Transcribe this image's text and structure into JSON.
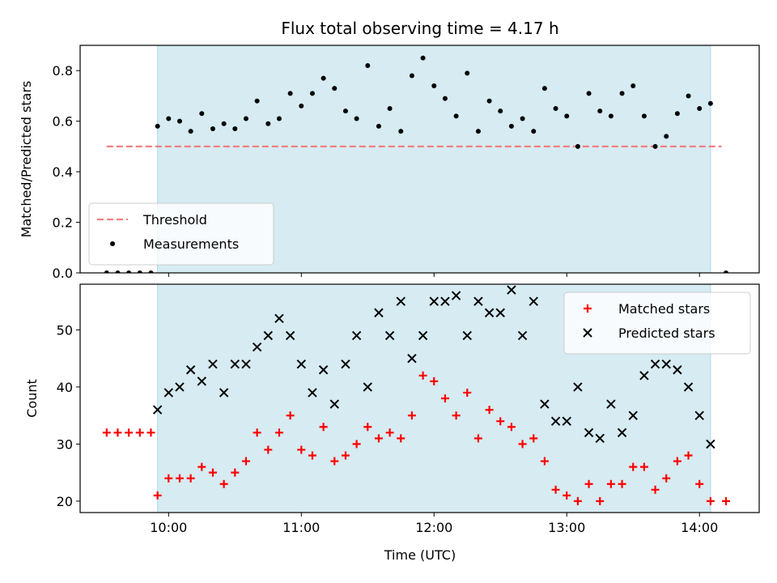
{
  "chart_data": {
    "title": "Flux total observing time = 4.17 h",
    "xlabel": "Time (UTC)",
    "x_ticks": [
      "10:00",
      "11:00",
      "12:00",
      "13:00",
      "14:00"
    ],
    "colors": {
      "shade": "#add8e6",
      "threshold": "#f08080",
      "measurements": "#000000",
      "matched": "#ff0000",
      "predicted": "#000000"
    },
    "observing_window": {
      "start": "09:55",
      "end": "14:05"
    },
    "panels": [
      {
        "type": "scatter",
        "ylabel": "Matched/Predicted stars",
        "ylim": [
          0,
          0.9
        ],
        "y_ticks": [
          "0.0",
          "0.2",
          "0.4",
          "0.6",
          "0.8"
        ],
        "legend_position": "lower-left",
        "series": [
          {
            "name": "Threshold",
            "style": "dashed-line",
            "x": [
              "09:32",
              "14:10"
            ],
            "y": [
              0.5,
              0.5
            ]
          },
          {
            "name": "Measurements",
            "style": "dot",
            "x": [
              "09:32",
              "09:37",
              "09:42",
              "09:47",
              "09:52",
              "09:55",
              "10:00",
              "10:05",
              "10:10",
              "10:15",
              "10:20",
              "10:25",
              "10:30",
              "10:35",
              "10:40",
              "10:45",
              "10:50",
              "10:55",
              "11:00",
              "11:05",
              "11:10",
              "11:15",
              "11:20",
              "11:25",
              "11:30",
              "11:35",
              "11:40",
              "11:45",
              "11:50",
              "11:55",
              "12:00",
              "12:05",
              "12:10",
              "12:15",
              "12:20",
              "12:25",
              "12:30",
              "12:35",
              "12:40",
              "12:45",
              "12:50",
              "12:55",
              "13:00",
              "13:05",
              "13:10",
              "13:15",
              "13:20",
              "13:25",
              "13:30",
              "13:35",
              "13:40",
              "13:45",
              "13:50",
              "13:55",
              "14:00",
              "14:05",
              "14:12"
            ],
            "y": [
              0,
              0,
              0,
              0,
              0,
              0.58,
              0.61,
              0.6,
              0.56,
              0.63,
              0.57,
              0.59,
              0.57,
              0.61,
              0.68,
              0.59,
              0.61,
              0.71,
              0.66,
              0.71,
              0.77,
              0.73,
              0.64,
              0.61,
              0.82,
              0.58,
              0.65,
              0.56,
              0.78,
              0.85,
              0.74,
              0.69,
              0.62,
              0.79,
              0.56,
              0.68,
              0.64,
              0.58,
              0.61,
              0.56,
              0.73,
              0.65,
              0.62,
              0.5,
              0.71,
              0.64,
              0.62,
              0.71,
              0.74,
              0.62,
              0.5,
              0.54,
              0.63,
              0.7,
              0.65,
              0.67,
              0
            ]
          }
        ]
      },
      {
        "type": "scatter",
        "ylabel": "Count",
        "ylim": [
          18,
          58
        ],
        "y_ticks": [
          "20",
          "30",
          "40",
          "50"
        ],
        "legend_position": "upper-right",
        "series": [
          {
            "name": "Matched stars",
            "style": "plus",
            "x": [
              "09:32",
              "09:37",
              "09:42",
              "09:47",
              "09:52",
              "09:55",
              "10:00",
              "10:05",
              "10:10",
              "10:15",
              "10:20",
              "10:25",
              "10:30",
              "10:35",
              "10:40",
              "10:45",
              "10:50",
              "10:55",
              "11:00",
              "11:05",
              "11:10",
              "11:15",
              "11:20",
              "11:25",
              "11:30",
              "11:35",
              "11:40",
              "11:45",
              "11:50",
              "11:55",
              "12:00",
              "12:05",
              "12:10",
              "12:15",
              "12:20",
              "12:25",
              "12:30",
              "12:35",
              "12:40",
              "12:45",
              "12:50",
              "12:55",
              "13:00",
              "13:05",
              "13:10",
              "13:15",
              "13:20",
              "13:25",
              "13:30",
              "13:35",
              "13:40",
              "13:45",
              "13:50",
              "13:55",
              "14:00",
              "14:05",
              "14:12"
            ],
            "y": [
              32,
              32,
              32,
              32,
              32,
              21,
              24,
              24,
              24,
              26,
              25,
              23,
              25,
              27,
              32,
              29,
              32,
              35,
              29,
              28,
              33,
              27,
              28,
              30,
              33,
              31,
              32,
              31,
              35,
              42,
              41,
              38,
              35,
              39,
              31,
              36,
              34,
              33,
              30,
              31,
              27,
              22,
              21,
              20,
              23,
              20,
              23,
              23,
              26,
              26,
              22,
              24,
              27,
              28,
              23,
              20,
              20
            ]
          },
          {
            "name": "Predicted stars",
            "style": "cross",
            "x": [
              "09:55",
              "10:00",
              "10:05",
              "10:10",
              "10:15",
              "10:20",
              "10:25",
              "10:30",
              "10:35",
              "10:40",
              "10:45",
              "10:50",
              "10:55",
              "11:00",
              "11:05",
              "11:10",
              "11:15",
              "11:20",
              "11:25",
              "11:30",
              "11:35",
              "11:40",
              "11:45",
              "11:50",
              "11:55",
              "12:00",
              "12:05",
              "12:10",
              "12:15",
              "12:20",
              "12:25",
              "12:30",
              "12:35",
              "12:40",
              "12:45",
              "12:50",
              "12:55",
              "13:00",
              "13:05",
              "13:10",
              "13:15",
              "13:20",
              "13:25",
              "13:30",
              "13:35",
              "13:40",
              "13:45",
              "13:50",
              "13:55",
              "14:00",
              "14:05"
            ],
            "y": [
              36,
              39,
              40,
              43,
              41,
              44,
              39,
              44,
              44,
              47,
              49,
              52,
              49,
              44,
              39,
              43,
              37,
              44,
              49,
              40,
              53,
              49,
              55,
              45,
              49,
              55,
              55,
              56,
              49,
              55,
              53,
              53,
              57,
              49,
              55,
              37,
              34,
              34,
              40,
              32,
              31,
              37,
              32,
              35,
              42,
              44,
              44,
              43,
              40,
              35,
              30
            ]
          }
        ]
      }
    ]
  }
}
